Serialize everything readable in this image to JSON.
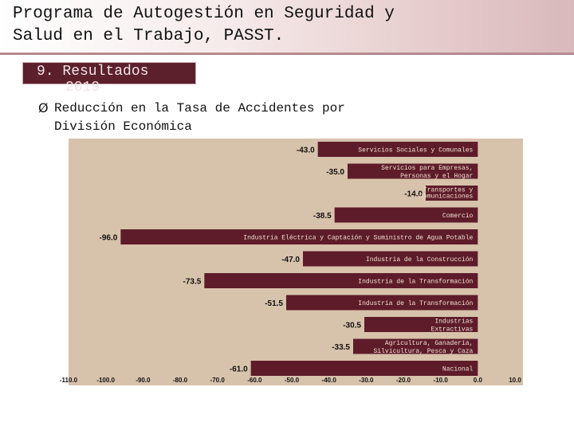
{
  "header": {
    "title_line1": "Programa de Autogestión en Seguridad y",
    "title_line2": "Salud en el Trabajo, PASST."
  },
  "section": {
    "label_line1": "9. Resultados",
    "label_line2": "2019"
  },
  "bullet": {
    "arrow": "Ø",
    "text_line1": "Reducción en la Tasa de Accidentes por",
    "text_line2": "División Económica"
  },
  "colors": {
    "bar": "#5e1c2a",
    "plot_bg": "#d7c2ac"
  },
  "chart_data": {
    "type": "bar",
    "orientation": "horizontal",
    "title": "",
    "xlabel": "",
    "ylabel": "",
    "xlim": [
      -110,
      10
    ],
    "xticks": [
      -110,
      -100,
      -90,
      -80,
      -70,
      -60,
      -50,
      -40,
      -30,
      -20,
      -10,
      0,
      10
    ],
    "xtick_labels": [
      "-110.0",
      "-100.0",
      "-90.0",
      "-80.0",
      "-70.0",
      "-60.0",
      "-50.0",
      "-40.0",
      "-30.0",
      "-20.0",
      "-10.0",
      "0.0",
      "10.0"
    ],
    "categories": [
      [
        "Servicios Sociales y Comunales"
      ],
      [
        "Servicios  para Empresas,",
        "Personas y el Hogar"
      ],
      [
        "Transportes y",
        "Comunicaciones"
      ],
      [
        "Comercio"
      ],
      [
        "Industria Eléctrica y Captación y Suministro de Agua Potable"
      ],
      [
        "Industria de la  Construcción"
      ],
      [
        "Industria de la Transformación"
      ],
      [
        "Industria de la Transformación"
      ],
      [
        "Industrias",
        "Extractivas"
      ],
      [
        "Agricultura, Ganadería,",
        "Silvicultura, Pesca y Caza"
      ],
      [
        "Nacional"
      ]
    ],
    "values": [
      -43.0,
      -35.0,
      -14.0,
      -38.5,
      -96.0,
      -47.0,
      -73.5,
      -51.5,
      -30.5,
      -33.5,
      -61.0
    ],
    "value_labels": [
      "-43.0",
      "-35.0",
      "-14.0",
      "-38.5",
      "-96.0",
      "-47.0",
      "-73.5",
      "-51.5",
      "-30.5",
      "-33.5",
      "-61.0"
    ]
  }
}
